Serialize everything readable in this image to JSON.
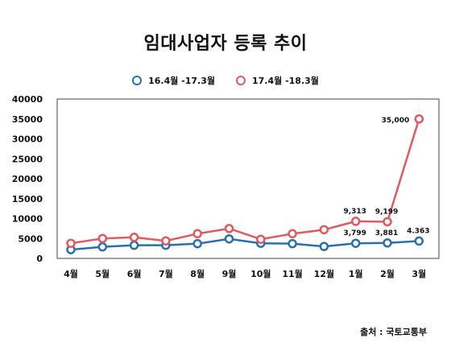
{
  "chart_data": {
    "type": "line",
    "title": "임대사업자 등록 추이",
    "categories": [
      "4월",
      "5월",
      "6월",
      "7월",
      "8월",
      "9월",
      "10월",
      "11월",
      "12월",
      "1월",
      "2월",
      "3월"
    ],
    "series": [
      {
        "name": "16.4월 -17.3월",
        "color": "#2a6fad",
        "values": [
          2200,
          2900,
          3300,
          3300,
          3700,
          4900,
          3800,
          3700,
          3000,
          3799,
          3881,
          4363
        ],
        "data_labels": [
          "",
          "",
          "",
          "",
          "",
          "",
          "",
          "",
          "",
          "3,799",
          "3,881",
          "4.363"
        ]
      },
      {
        "name": "17.4월 -18.3월",
        "color": "#e05a5f",
        "values": [
          3800,
          5000,
          5300,
          4400,
          6200,
          7500,
          4800,
          6200,
          7200,
          9313,
          9199,
          35000
        ],
        "data_labels": [
          "",
          "",
          "",
          "",
          "",
          "",
          "",
          "",
          "",
          "9,313",
          "9,199",
          "35,000"
        ]
      }
    ],
    "ylim": [
      0,
      40000
    ],
    "yticks": [
      0,
      5000,
      10000,
      15000,
      20000,
      25000,
      30000,
      35000,
      40000
    ],
    "grid": false,
    "legend_position": "top-center",
    "xlabel": "",
    "ylabel": ""
  },
  "source": "출처 : 국토교통부"
}
